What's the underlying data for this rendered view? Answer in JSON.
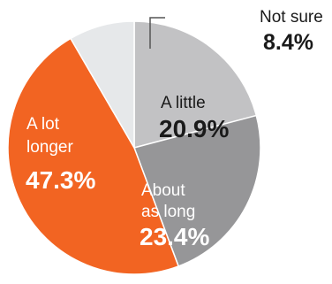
{
  "chart_data": {
    "type": "pie",
    "start_angle_deg": 0,
    "direction": "clockwise",
    "slices": [
      {
        "label_lines": [
          "A little"
        ],
        "value": 20.9,
        "value_text": "20.9%",
        "color": "#c2c2c4",
        "text_color": "#1a1a1a",
        "label_placement": "inside"
      },
      {
        "label_lines": [
          "About",
          "as long"
        ],
        "value": 23.4,
        "value_text": "23.4%",
        "color": "#969698",
        "text_color": "#ffffff",
        "label_placement": "inside"
      },
      {
        "label_lines": [
          "A lot",
          "longer"
        ],
        "value": 47.3,
        "value_text": "47.3%",
        "color": "#f26422",
        "text_color": "#ffffff",
        "label_placement": "inside"
      },
      {
        "label_lines": [
          "Not sure"
        ],
        "value": 8.4,
        "value_text": "8.4%",
        "color": "#e6e8ea",
        "text_color": "#1a1a1a",
        "label_placement": "outside"
      }
    ]
  }
}
